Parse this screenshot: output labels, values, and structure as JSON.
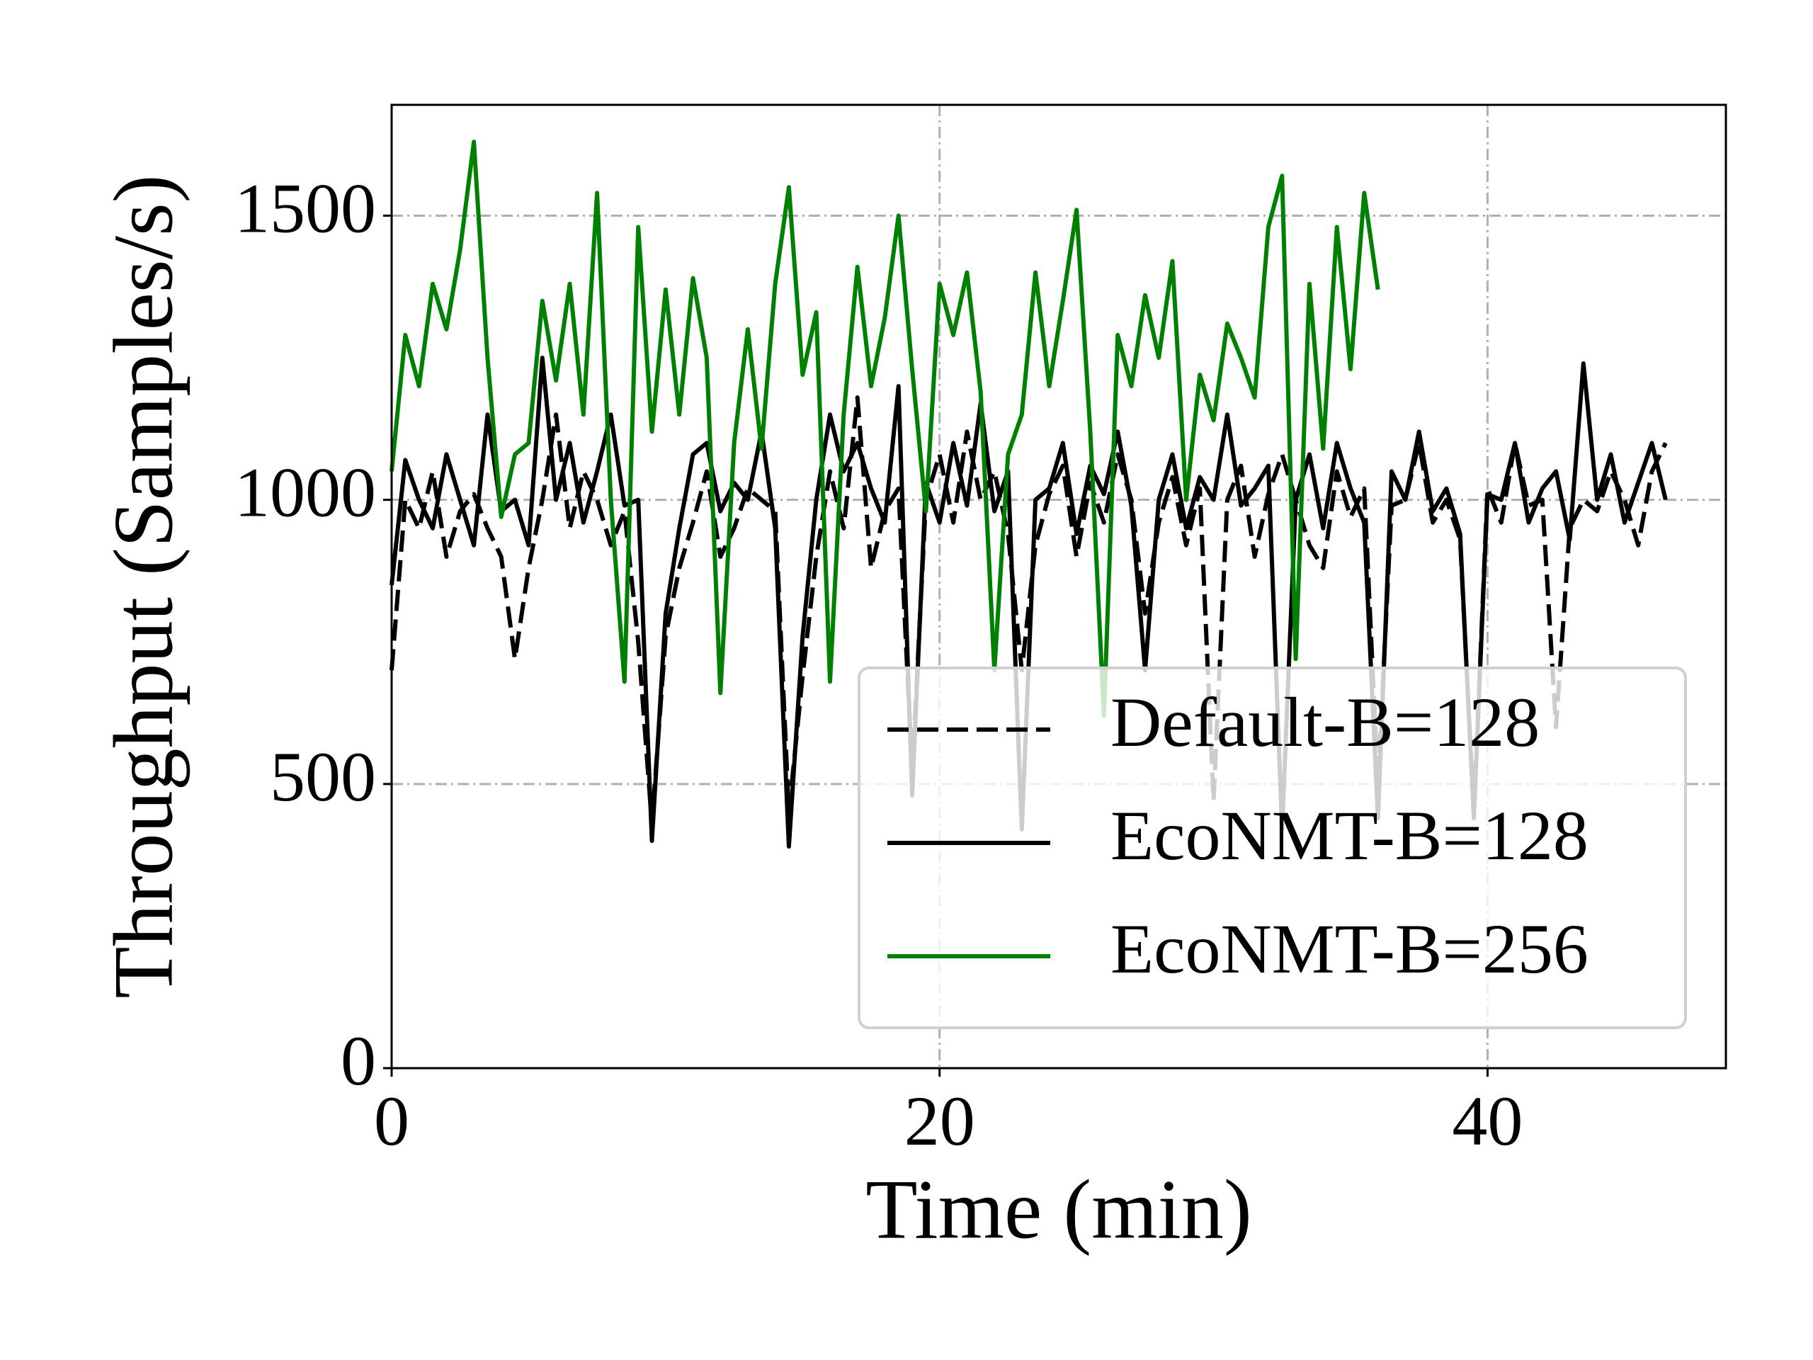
{
  "chart_data": {
    "type": "line",
    "xlabel": "Time (min)",
    "ylabel": "Throughput (Samples/s)",
    "xlim": [
      0,
      48.7
    ],
    "ylim": [
      0,
      1695
    ],
    "xticks": [
      0,
      20,
      40
    ],
    "yticks": [
      0,
      500,
      1000,
      1500
    ],
    "grid": true,
    "legend": "lower right",
    "x": [
      0,
      0.5,
      1,
      1.5,
      2,
      2.5,
      3,
      3.5,
      4,
      4.5,
      5,
      5.5,
      6,
      6.5,
      7,
      7.5,
      8,
      8.5,
      9,
      9.5,
      10,
      10.5,
      11,
      11.5,
      12,
      12.5,
      13,
      13.5,
      14,
      14.5,
      15,
      15.5,
      16,
      16.5,
      17,
      17.5,
      18,
      18.5,
      19,
      19.5,
      20,
      20.5,
      21,
      21.5,
      22,
      22.5,
      23,
      23.5,
      24,
      24.5,
      25,
      25.5,
      26,
      26.5,
      27,
      27.5,
      28,
      28.5,
      29,
      29.5,
      30,
      30.5,
      31,
      31.5,
      32,
      32.5,
      33,
      33.5,
      34,
      34.5,
      35,
      35.5,
      36,
      36.5,
      37,
      37.5,
      38,
      38.5,
      39,
      39.5,
      40,
      40.5,
      41,
      41.5,
      42,
      42.5,
      43,
      43.5,
      44,
      44.5,
      45,
      45.5,
      46,
      46.5
    ],
    "series": [
      {
        "name": "Default-B=128",
        "color": "#000000",
        "linestyle": "dashed",
        "values": [
          700,
          1000,
          950,
          1050,
          900,
          980,
          1010,
          950,
          900,
          720,
          880,
          1000,
          1150,
          950,
          1050,
          1000,
          920,
          980,
          750,
          430,
          760,
          880,
          960,
          1050,
          900,
          950,
          1020,
          1000,
          980,
          450,
          690,
          900,
          1050,
          950,
          1180,
          880,
          980,
          1020,
          520,
          1000,
          1080,
          960,
          1120,
          1000,
          1050,
          940,
          700,
          920,
          1010,
          1060,
          900,
          1030,
          960,
          1080,
          1000,
          800,
          960,
          1040,
          920,
          1020,
          470,
          1000,
          1060,
          900,
          1010,
          1080,
          1000,
          920,
          880,
          1050,
          970,
          1020,
          500,
          990,
          1000,
          1100,
          960,
          1000,
          930,
          450,
          1020,
          960,
          1100,
          990,
          1000,
          600,
          950,
          1000,
          980,
          1050,
          1000,
          920,
          1050,
          1100
        ]
      },
      {
        "name": "EcoNMT-B=128",
        "color": "#000000",
        "linestyle": "solid",
        "values": [
          850,
          1070,
          1000,
          950,
          1080,
          1000,
          920,
          1150,
          980,
          1000,
          920,
          1250,
          1000,
          1100,
          960,
          1050,
          1150,
          990,
          1000,
          400,
          800,
          950,
          1080,
          1100,
          980,
          1030,
          1000,
          1120,
          950,
          390,
          760,
          1000,
          1150,
          1050,
          1100,
          1020,
          960,
          1200,
          480,
          1030,
          960,
          1100,
          990,
          1170,
          980,
          1050,
          420,
          1000,
          1020,
          1100,
          940,
          1060,
          1010,
          1120,
          990,
          700,
          1000,
          1080,
          950,
          1040,
          1000,
          1150,
          990,
          1020,
          1060,
          420,
          1000,
          1080,
          950,
          1100,
          1020,
          960,
          440,
          1050,
          1000,
          1120,
          980,
          1020,
          940,
          440,
          1010,
          1000,
          1100,
          960,
          1020,
          1050,
          930,
          1240,
          1000,
          1080,
          960,
          1030,
          1100,
          1000
        ]
      },
      {
        "name": "EcoNMT-B=256",
        "color": "#008000",
        "linestyle": "solid",
        "values": [
          1050,
          1290,
          1200,
          1380,
          1300,
          1440,
          1630,
          1250,
          970,
          1080,
          1100,
          1350,
          1210,
          1380,
          1150,
          1540,
          1000,
          680,
          1480,
          1120,
          1370,
          1150,
          1390,
          1250,
          660,
          1100,
          1300,
          1090,
          1380,
          1550,
          1220,
          1330,
          680,
          1150,
          1410,
          1200,
          1320,
          1500,
          1230,
          980,
          1380,
          1290,
          1400,
          1190,
          700,
          1080,
          1150,
          1400,
          1200,
          1350,
          1510,
          1120,
          620,
          1290,
          1200,
          1360,
          1250,
          1420,
          1000,
          1220,
          1140,
          1310,
          1250,
          1180,
          1480,
          1570,
          720,
          1380,
          1090,
          1480,
          1230,
          1540,
          1370,
          null,
          null,
          null,
          null,
          null,
          null,
          null,
          null,
          null,
          null,
          null,
          null,
          null,
          null,
          null,
          null,
          null,
          null,
          null,
          null,
          null
        ]
      }
    ]
  }
}
